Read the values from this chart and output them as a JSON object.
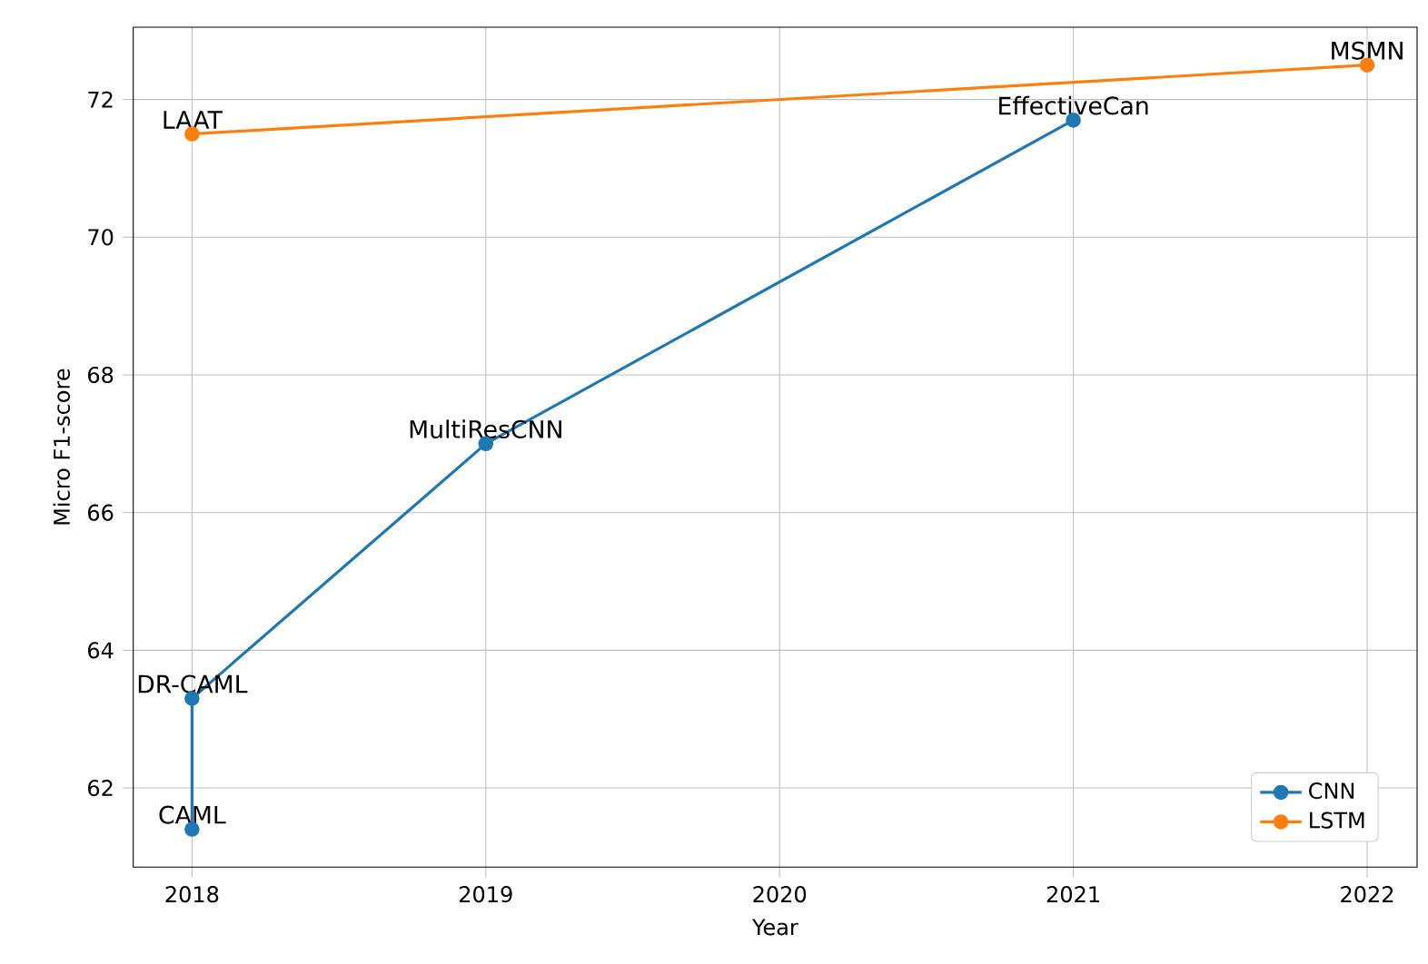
{
  "chart_data": {
    "type": "line",
    "xlabel": "Year",
    "ylabel": "Micro F1-score",
    "xlim": [
      2017.8,
      2022.17
    ],
    "ylim": [
      60.85,
      73.05
    ],
    "xticks": [
      2018,
      2019,
      2020,
      2021,
      2022
    ],
    "yticks": [
      62,
      64,
      66,
      68,
      70,
      72
    ],
    "grid": true,
    "legend": "bottom right",
    "marker": "circle",
    "line_style": "solid",
    "series": [
      {
        "name": "CNN",
        "color": "#1f77b4",
        "x": [
          2018,
          2018,
          2019,
          2021
        ],
        "values": [
          61.4,
          63.3,
          67.0,
          71.7
        ]
      },
      {
        "name": "LSTM",
        "color": "#ff7f0e",
        "x": [
          2018,
          2022
        ],
        "values": [
          71.5,
          72.5
        ]
      }
    ],
    "annotations": [
      {
        "text": "CAML",
        "x": 2018,
        "y": 61.4
      },
      {
        "text": "DR-CAML",
        "x": 2018,
        "y": 63.3
      },
      {
        "text": "MultiResCNN",
        "x": 2019,
        "y": 67.0
      },
      {
        "text": "EffectiveCan",
        "x": 2021,
        "y": 71.7
      },
      {
        "text": "LAAT",
        "x": 2018,
        "y": 71.5
      },
      {
        "text": "MSMN",
        "x": 2022,
        "y": 72.5
      }
    ]
  }
}
